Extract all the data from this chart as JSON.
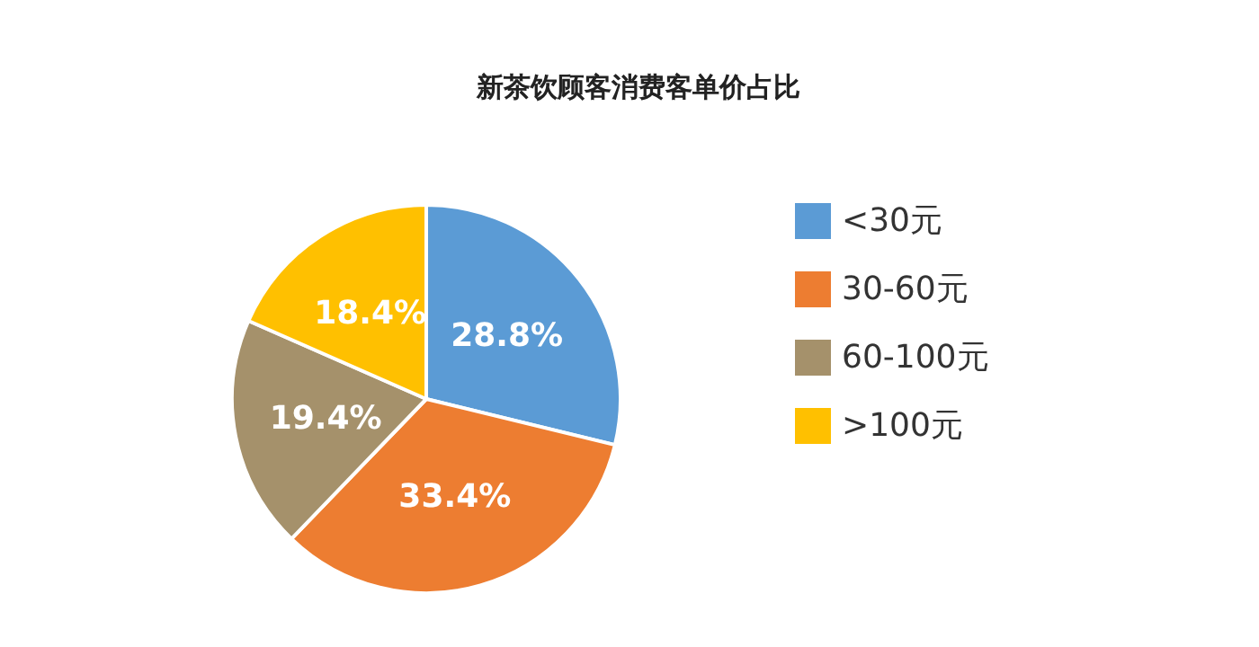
{
  "chart_data": {
    "type": "pie",
    "title": "新茶饮顾客消费客单价占比",
    "categories": [
      "<30元",
      "30-60元",
      "60-100元",
      ">100元"
    ],
    "values": [
      28.8,
      33.4,
      19.4,
      18.4
    ],
    "value_labels": [
      "28.8%",
      "33.4%",
      "19.4%",
      "18.4%"
    ],
    "colors": [
      "#5b9bd5",
      "#ed7d31",
      "#a5916b",
      "#ffc000"
    ],
    "legend": "right"
  }
}
